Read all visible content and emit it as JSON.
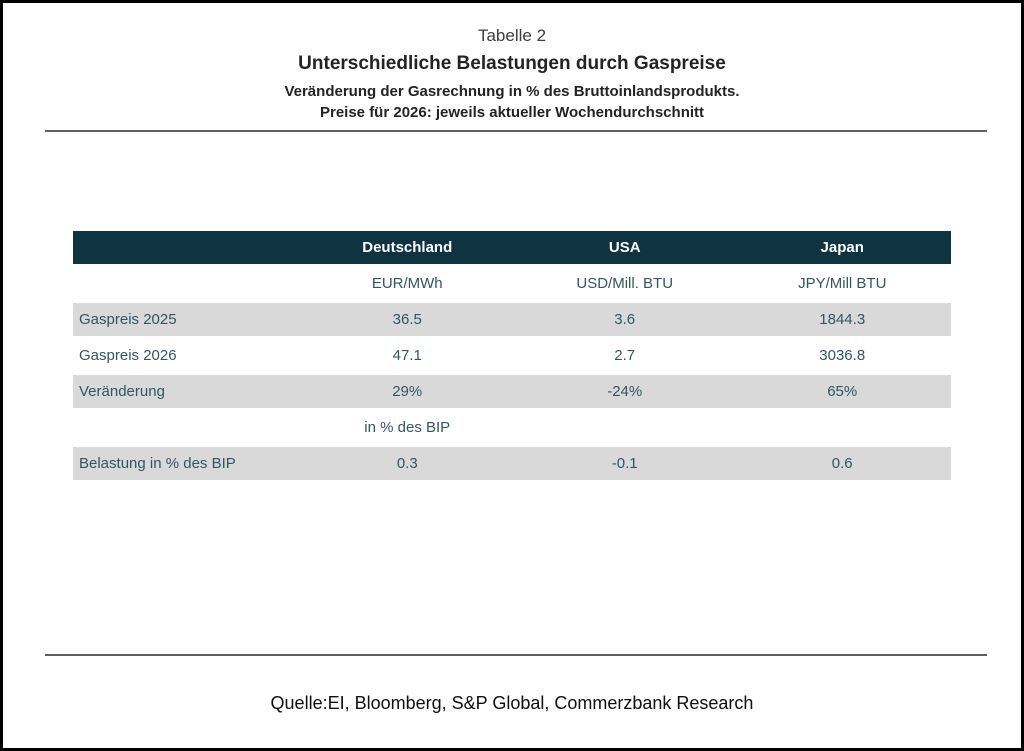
{
  "page": {
    "title_tag": "Tabelle 2",
    "title_main": "Unterschiedliche Belastungen durch Gaspreise",
    "subtitle_1": "Veränderung der Gasrechnung in % des Bruttoinlandsprodukts.",
    "subtitle_2": "Preise für 2026: jeweils aktueller Wochendurchschnitt",
    "source": "Quelle:EI, Bloomberg, S&P Global, Commerzbank Research"
  },
  "colors": {
    "header_bg": "#0d3440",
    "shaded_row_bg": "#d9d9d9",
    "table_text": "#2e5763",
    "rule_gray": "#5f5f5f"
  },
  "chart_data": {
    "type": "table",
    "title": "Tabelle 2",
    "subtitle": "Unterschiedliche Belastungen durch Gaspreise",
    "note_1": "Veränderung der Gasrechnung in % des Bruttoinlandsprodukts.",
    "note_2": "Preise für 2026: jeweils aktueller Wochendurchschnitt",
    "columns": [
      "",
      "Deutschland",
      "USA",
      "Japan"
    ],
    "units_row": [
      "",
      "EUR/MWh",
      "USD/Mill. BTU",
      "JPY/Mill BTU"
    ],
    "rows": [
      {
        "label": "Gaspreis 2025",
        "values": [
          "36.5",
          "3.6",
          "1844.3"
        ],
        "shaded": true
      },
      {
        "label": "Gaspreis 2026",
        "values": [
          "47.1",
          "2.7",
          "3036.8"
        ],
        "shaded": false
      },
      {
        "label": "Veränderung",
        "values": [
          "29%",
          "-24%",
          "65%"
        ],
        "shaded": true
      },
      {
        "label": "",
        "values": [
          "in % des BIP",
          "",
          ""
        ],
        "shaded": false
      },
      {
        "label": "Belastung in % des BIP",
        "values": [
          "0.3",
          "-0.1",
          "0.6"
        ],
        "shaded": true
      }
    ],
    "source": "Quelle:EI, Bloomberg, S&P Global, Commerzbank Research",
    "legend_position": "none",
    "grid": false
  }
}
